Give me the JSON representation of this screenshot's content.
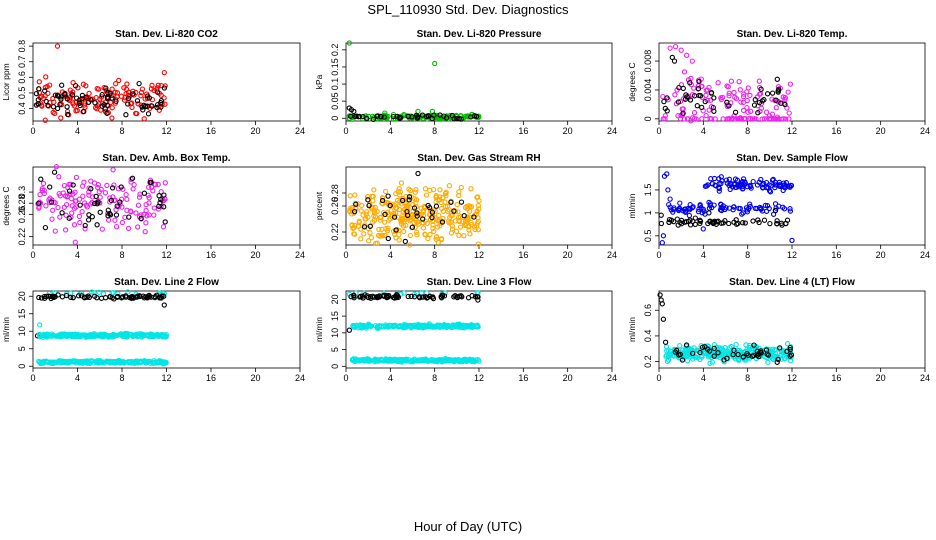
{
  "figure": {
    "title": "SPL_110930  Std. Dev. Diagnostics",
    "xlabel": "Hour of Day (UTC)"
  },
  "chart_data": [
    {
      "type": "scatter",
      "title": "Stan. Dev. Li-820 CO2",
      "ylabel": "Licor ppm",
      "xlim": [
        0,
        24
      ],
      "ylim": [
        0.32,
        0.82
      ],
      "xticks": [
        0,
        4,
        8,
        12,
        16,
        20,
        24
      ],
      "yticks": [
        0.4,
        0.5,
        0.6,
        0.7,
        0.8
      ],
      "series": [
        {
          "name": "red",
          "color": "#ff0000",
          "gen": {
            "x0": 0.3,
            "x1": 12,
            "n": 140,
            "center": 0.46,
            "spread": 0.05,
            "seed": 11
          },
          "points": [
            [
              2.2,
              0.8
            ],
            [
              7.7,
              0.58
            ],
            [
              1.5,
              0.55
            ],
            [
              11.8,
              0.63
            ],
            [
              2.5,
              0.34
            ],
            [
              3.2,
              0.36
            ]
          ]
        },
        {
          "name": "black",
          "color": "#000000",
          "gen": {
            "x0": 0.3,
            "x1": 12,
            "n": 70,
            "center": 0.45,
            "spread": 0.045,
            "seed": 12
          },
          "points": []
        }
      ]
    },
    {
      "type": "scatter",
      "title": "Stan. Dev. Li-820 Pressure",
      "ylabel": "kPa",
      "xlim": [
        0,
        24
      ],
      "ylim": [
        -0.008,
        0.22
      ],
      "xticks": [
        0,
        4,
        8,
        12,
        16,
        20,
        24
      ],
      "yticks": [
        0.0,
        0.05,
        0.1,
        0.15,
        0.2
      ],
      "series": [
        {
          "name": "green",
          "color": "#00bb00",
          "gen": {
            "x0": 0.3,
            "x1": 12,
            "n": 110,
            "center": 0.004,
            "spread": 0.003,
            "seed": 21
          },
          "points": [
            [
              0.3,
              0.22
            ],
            [
              8.0,
              0.16
            ],
            [
              3.5,
              0.015
            ],
            [
              6.5,
              0.02
            ],
            [
              7.8,
              0.02
            ]
          ]
        },
        {
          "name": "black",
          "color": "#000000",
          "gen": {
            "x0": 0.3,
            "x1": 12,
            "n": 40,
            "center": 0.004,
            "spread": 0.003,
            "seed": 22
          },
          "points": [
            [
              0.3,
              0.03
            ],
            [
              0.5,
              0.025
            ],
            [
              0.7,
              0.02
            ]
          ]
        }
      ]
    },
    {
      "type": "scatter",
      "title": "Stan. Dev. Li-820 Temp.",
      "ylabel": "degrees C",
      "xlim": [
        0,
        24
      ],
      "ylim": [
        -0.0003,
        0.0105
      ],
      "xticks": [
        0,
        4,
        8,
        12,
        16,
        20,
        24
      ],
      "yticks": [
        0.0,
        0.004,
        0.008
      ],
      "series": [
        {
          "name": "magenta",
          "color": "#ee22ee",
          "gen": {
            "x0": 0.3,
            "x1": 12,
            "n": 110,
            "center": 0.0025,
            "spread": 0.0015,
            "seed": 31
          },
          "points": [
            [
              1.0,
              0.0098
            ],
            [
              1.5,
              0.01
            ],
            [
              2.0,
              0.0095
            ],
            [
              2.5,
              0.0088
            ],
            [
              3.0,
              0.008
            ],
            [
              2.3,
              0.0065
            ]
          ]
        },
        {
          "name": "magenta-zero",
          "color": "#ee22ee",
          "gen": {
            "x0": 0.3,
            "x1": 12,
            "n": 45,
            "center": 0.0,
            "spread": 2e-05,
            "seed": 32
          },
          "points": []
        },
        {
          "name": "black",
          "color": "#000000",
          "gen": {
            "x0": 0.3,
            "x1": 12,
            "n": 45,
            "center": 0.003,
            "spread": 0.0012,
            "seed": 33
          },
          "points": [
            [
              1.2,
              0.0085
            ],
            [
              1.4,
              0.008
            ]
          ]
        }
      ]
    },
    {
      "type": "scatter",
      "title": "Stan. Dev. Amb. Box Temp.",
      "ylabel": "degrees C",
      "xlim": [
        0,
        24
      ],
      "ylim": [
        0.205,
        0.345
      ],
      "xticks": [
        0,
        4,
        8,
        12,
        16,
        20,
        24
      ],
      "yticks": [
        0.22,
        0.26,
        0.28,
        0.3
      ],
      "series": [
        {
          "name": "magenta",
          "color": "#ee22ee",
          "gen": {
            "x0": 0.3,
            "x1": 12,
            "n": 150,
            "center": 0.285,
            "spread": 0.025,
            "seed": 41
          },
          "points": [
            [
              3.8,
              0.21
            ],
            [
              7.2,
              0.34
            ],
            [
              2.0,
              0.23
            ]
          ]
        },
        {
          "name": "black",
          "color": "#000000",
          "gen": {
            "x0": 0.3,
            "x1": 12,
            "n": 45,
            "center": 0.28,
            "spread": 0.022,
            "seed": 42
          },
          "points": []
        }
      ]
    },
    {
      "type": "scatter",
      "title": "Stan. Dev. Gas Stream RH",
      "ylabel": "percent",
      "xlim": [
        0,
        24
      ],
      "ylim": [
        0.2,
        0.32
      ],
      "xticks": [
        0,
        4,
        8,
        12,
        16,
        20,
        24
      ],
      "yticks": [
        0.22,
        0.26,
        0.28
      ],
      "series": [
        {
          "name": "orange",
          "color": "#ffaa00",
          "gen": {
            "x0": 0.3,
            "x1": 12,
            "n": 320,
            "center": 0.245,
            "spread": 0.02,
            "seed": 51
          },
          "points": []
        },
        {
          "name": "black",
          "color": "#000000",
          "gen": {
            "x0": 0.3,
            "x1": 12,
            "n": 35,
            "center": 0.25,
            "spread": 0.018,
            "seed": 52
          },
          "points": [
            [
              6.5,
              0.31
            ]
          ]
        }
      ]
    },
    {
      "type": "scatter",
      "title": "Stan. Dev. Sample Flow",
      "ylabel": "ml/min",
      "xlim": [
        0,
        24
      ],
      "ylim": [
        0.3,
        2.0
      ],
      "xticks": [
        0,
        4,
        8,
        12,
        16,
        20,
        24
      ],
      "yticks": [
        0.5,
        1.0,
        1.5
      ],
      "series": [
        {
          "name": "blue-high",
          "color": "#0000ee",
          "gen": {
            "x0": 4,
            "x1": 12,
            "n": 90,
            "center": 1.6,
            "spread": 0.07,
            "seed": 61
          },
          "points": [
            [
              0.5,
              1.8
            ],
            [
              0.7,
              1.85
            ],
            [
              0.8,
              1.5
            ],
            [
              1.0,
              1.3
            ]
          ]
        },
        {
          "name": "blue-mid",
          "color": "#0000ee",
          "gen": {
            "x0": 0.8,
            "x1": 12,
            "n": 80,
            "center": 1.1,
            "spread": 0.06,
            "seed": 62
          },
          "points": [
            [
              0.3,
              0.35
            ],
            [
              0.4,
              0.5
            ],
            [
              4.0,
              0.65
            ],
            [
              12,
              0.4
            ]
          ]
        },
        {
          "name": "black",
          "color": "#000000",
          "gen": {
            "x0": 0.2,
            "x1": 12,
            "n": 55,
            "center": 0.8,
            "spread": 0.03,
            "seed": 63
          },
          "points": [
            [
              0.2,
              0.95
            ],
            [
              4.5,
              1.0
            ],
            [
              10.5,
              1.05
            ]
          ]
        }
      ]
    },
    {
      "type": "scatter",
      "title": "Stan. Dev. Line 2 Flow",
      "ylabel": "ml/min",
      "xlim": [
        0,
        24
      ],
      "ylim": [
        -0.5,
        21.5
      ],
      "xticks": [
        0,
        4,
        8,
        12,
        16,
        20,
        24
      ],
      "yticks": [
        0,
        5,
        10,
        15,
        20
      ],
      "series": [
        {
          "name": "cyan-high",
          "color": "#00e5e5",
          "gen": {
            "x0": 0.3,
            "x1": 12,
            "n": 20,
            "center": 20.9,
            "spread": 0.2,
            "seed": 71
          },
          "points": []
        },
        {
          "name": "black",
          "color": "#000000",
          "gen": {
            "x0": 0.3,
            "x1": 12,
            "n": 70,
            "center": 19.8,
            "spread": 0.25,
            "seed": 72
          },
          "points": [
            [
              0.4,
              8.7
            ],
            [
              11.8,
              17.5
            ]
          ]
        },
        {
          "name": "cyan-mid",
          "color": "#00e5e5",
          "gen": {
            "x0": 0.5,
            "x1": 12,
            "n": 220,
            "center": 8.8,
            "spread": 0.25,
            "seed": 73
          },
          "points": [
            [
              0.6,
              11.8
            ]
          ]
        },
        {
          "name": "cyan-low",
          "color": "#00e5e5",
          "gen": {
            "x0": 0.5,
            "x1": 12,
            "n": 220,
            "center": 1.2,
            "spread": 0.2,
            "seed": 74
          },
          "points": []
        }
      ]
    },
    {
      "type": "scatter",
      "title": "Stan. Dev. Line 3 Flow",
      "ylabel": "ml/min",
      "xlim": [
        0,
        24
      ],
      "ylim": [
        -0.5,
        22.5
      ],
      "xticks": [
        0,
        4,
        8,
        12,
        16,
        20,
        24
      ],
      "yticks": [
        0,
        5,
        10,
        15,
        20
      ],
      "series": [
        {
          "name": "cyan-high",
          "color": "#00e5e5",
          "gen": {
            "x0": 0.3,
            "x1": 12,
            "n": 15,
            "center": 21.8,
            "spread": 0.2,
            "seed": 81
          },
          "points": []
        },
        {
          "name": "black",
          "color": "#000000",
          "gen": {
            "x0": 0.3,
            "x1": 12,
            "n": 70,
            "center": 20.8,
            "spread": 0.25,
            "seed": 82
          },
          "points": [
            [
              0.3,
              10.8
            ],
            [
              11.9,
              19.8
            ]
          ]
        },
        {
          "name": "cyan-mid",
          "color": "#00e5e5",
          "gen": {
            "x0": 0.5,
            "x1": 12,
            "n": 220,
            "center": 12.0,
            "spread": 0.25,
            "seed": 83
          },
          "points": []
        },
        {
          "name": "cyan-low",
          "color": "#00e5e5",
          "gen": {
            "x0": 0.5,
            "x1": 12,
            "n": 220,
            "center": 1.8,
            "spread": 0.2,
            "seed": 84
          },
          "points": []
        }
      ]
    },
    {
      "type": "scatter",
      "title": "Stan. Dev. Line 4 (LT) Flow",
      "ylabel": "ml/min",
      "xlim": [
        0,
        24
      ],
      "ylim": [
        0.15,
        0.75
      ],
      "xticks": [
        0,
        4,
        8,
        12,
        16,
        20,
        24
      ],
      "yticks": [
        0.2,
        0.4,
        0.6
      ],
      "series": [
        {
          "name": "cyan",
          "color": "#00e5e5",
          "gen": {
            "x0": 0.6,
            "x1": 12,
            "n": 260,
            "center": 0.265,
            "spread": 0.03,
            "seed": 91
          },
          "points": []
        },
        {
          "name": "black",
          "color": "#000000",
          "gen": {
            "x0": 0.6,
            "x1": 12,
            "n": 45,
            "center": 0.27,
            "spread": 0.035,
            "seed": 92
          },
          "points": [
            [
              0.1,
              0.72
            ],
            [
              0.2,
              0.68
            ],
            [
              0.3,
              0.65
            ],
            [
              0.4,
              0.53
            ],
            [
              0.6,
              0.35
            ]
          ]
        }
      ]
    }
  ]
}
